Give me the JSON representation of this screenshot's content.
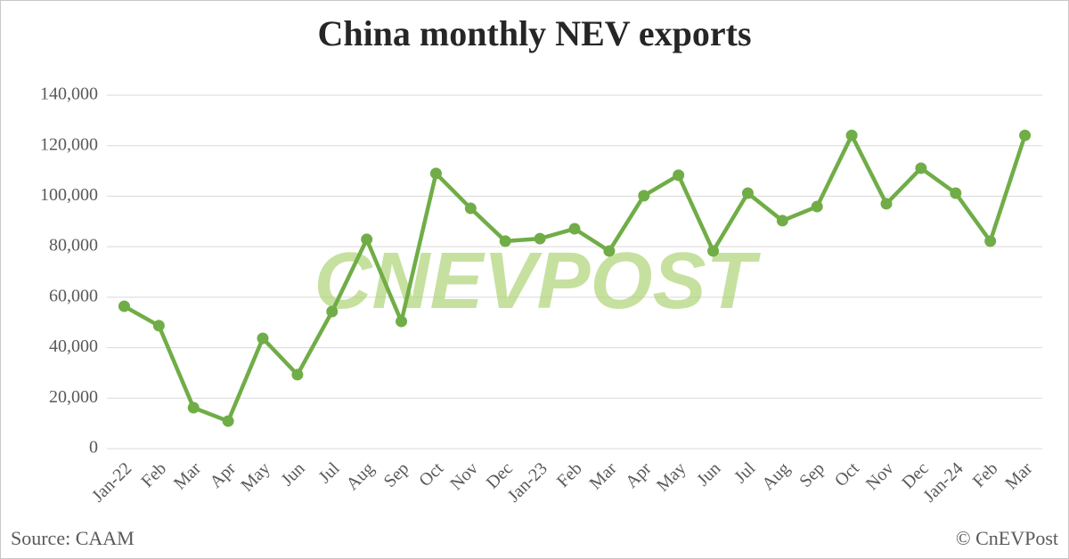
{
  "chart_data": {
    "type": "line",
    "title": "China monthly NEV exports",
    "watermark": "CNEVPOST",
    "source": "Source: CAAM",
    "copyright": "© CnEVPost",
    "categories": [
      "Jan-22",
      "Feb",
      "Mar",
      "Apr",
      "May",
      "Jun",
      "Jul",
      "Aug",
      "Sep",
      "Oct",
      "Nov",
      "Dec",
      "Jan-23",
      "Feb",
      "Mar",
      "Apr",
      "May",
      "Jun",
      "Jul",
      "Aug",
      "Sep",
      "Oct",
      "Nov",
      "Dec",
      "Jan-24",
      "Feb",
      "Mar"
    ],
    "series": [
      {
        "name": "NEV exports",
        "color": "#70ad47",
        "values": [
          56400,
          48700,
          16200,
          10900,
          43700,
          29300,
          54300,
          82900,
          50400,
          109000,
          95200,
          82200,
          83200,
          87100,
          78300,
          100200,
          108300,
          78300,
          101200,
          90300,
          95900,
          124100,
          97000,
          111100,
          101200,
          82200,
          124100
        ]
      }
    ],
    "ylim": [
      0,
      140000
    ],
    "yticks": [
      0,
      {
        "value": 20000,
        "label": "20,000"
      },
      {
        "value": 40000,
        "label": "40,000"
      },
      {
        "value": 60000,
        "label": "60,000"
      },
      {
        "value": 80000,
        "label": "80,000"
      },
      {
        "value": 100000,
        "label": "100,000"
      },
      {
        "value": 120000,
        "label": "120,000"
      },
      {
        "value": 140000,
        "label": "140,000"
      }
    ],
    "grid": true
  }
}
